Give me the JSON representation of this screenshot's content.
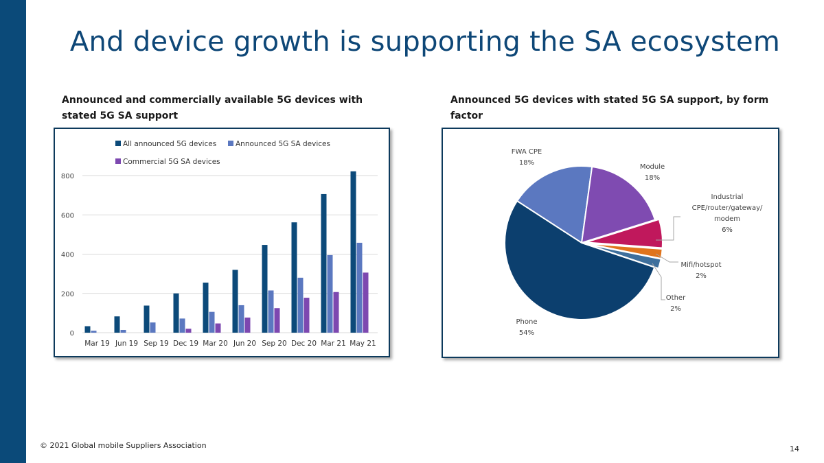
{
  "slide": {
    "title": "And device growth is supporting the SA ecosystem",
    "footer": "© 2021 Global mobile Suppliers Association",
    "page_number": "14"
  },
  "colors": {
    "sidebar": "#0b4a79",
    "title": "#0e4777",
    "series_all": "#0c4a7a",
    "series_sa": "#5b78c0",
    "series_commercial": "#7d48b0"
  },
  "chart_data": [
    {
      "type": "bar",
      "title_lines": [
        "Announced and commercially available 5G devices with",
        "stated 5G SA support"
      ],
      "categories": [
        "Mar 19",
        "Jun 19",
        "Sep 19",
        "Dec 19",
        "Mar 20",
        "Jun 20",
        "Sep 20",
        "Dec 20",
        "Mar 21",
        "May 21"
      ],
      "series": [
        {
          "name": "All announced 5G devices",
          "color": "#0c4a7a",
          "values": [
            33,
            83,
            138,
            200,
            255,
            320,
            447,
            562,
            706,
            822
          ]
        },
        {
          "name": "Announced 5G SA devices",
          "color": "#5b78c0",
          "values": [
            10,
            14,
            52,
            72,
            106,
            140,
            215,
            280,
            395,
            458
          ]
        },
        {
          "name": "Commercial 5G SA devices",
          "color": "#7d48b0",
          "values": [
            0,
            0,
            0,
            20,
            47,
            77,
            125,
            178,
            207,
            306
          ]
        }
      ],
      "yticks": [
        0,
        200,
        400,
        600,
        800
      ],
      "ylim": [
        0,
        870
      ],
      "xlabel": "",
      "ylabel": "",
      "grid": true,
      "legend": "top"
    },
    {
      "type": "pie",
      "title_lines": [
        "Announced 5G devices with stated 5G SA support, by form",
        "factor"
      ],
      "slices": [
        {
          "label": "Phone",
          "value": 54,
          "pct_label": "54%",
          "color": "#0c3f6e"
        },
        {
          "label": "FWA CPE",
          "value": 18,
          "pct_label": "18%",
          "color": "#5b78c0"
        },
        {
          "label": "Module",
          "value": 18,
          "pct_label": "18%",
          "color": "#7f4bb1"
        },
        {
          "label": "Industrial CPE/router/gateway/ modem",
          "value": 6,
          "pct_label": "6%",
          "color": "#c0185c"
        },
        {
          "label": "Mifi/hotspot",
          "value": 2,
          "pct_label": "2%",
          "color": "#e0741c"
        },
        {
          "label": "Other",
          "value": 2,
          "pct_label": "2%",
          "color": "#3e6f9c"
        }
      ]
    }
  ]
}
